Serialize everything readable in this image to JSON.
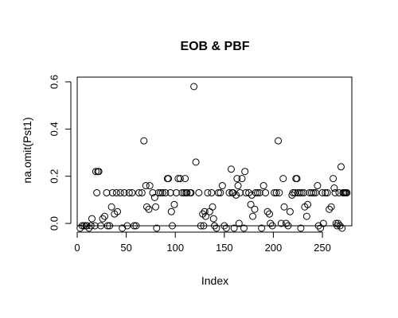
{
  "chart_data": {
    "type": "scatter",
    "title": "EOB & PBF",
    "xlabel": "Index",
    "ylabel": "na.omit(Pst1)",
    "xlim": [
      0,
      280
    ],
    "ylim": [
      -0.01,
      0.62
    ],
    "x_ticks": [
      0,
      50,
      100,
      150,
      200,
      250
    ],
    "y_ticks": [
      0.0,
      0.2,
      0.4,
      0.6
    ],
    "x_tick_labels": [
      "0",
      "50",
      "100",
      "150",
      "200",
      "250"
    ],
    "y_tick_labels": [
      "0.0",
      "0.2",
      "0.4",
      "0.6"
    ],
    "grid": false,
    "legend": "none",
    "marker": "open-circle",
    "colors": {
      "background": "#ffffff",
      "axis": "#000000",
      "marker_stroke": "#000000",
      "text": "#000000"
    },
    "points": [
      {
        "x": 3,
        "y": -0.02
      },
      {
        "x": 5,
        "y": -0.01
      },
      {
        "x": 7,
        "y": -0.01
      },
      {
        "x": 9,
        "y": -0.01
      },
      {
        "x": 10,
        "y": -0.01
      },
      {
        "x": 12,
        "y": -0.02
      },
      {
        "x": 14,
        "y": -0.01
      },
      {
        "x": 15,
        "y": 0.02
      },
      {
        "x": 18,
        "y": -0.01
      },
      {
        "x": 19,
        "y": 0.22
      },
      {
        "x": 20,
        "y": 0.13
      },
      {
        "x": 21,
        "y": 0.22
      },
      {
        "x": 22,
        "y": 0.22
      },
      {
        "x": 24,
        "y": -0.01
      },
      {
        "x": 26,
        "y": 0.02
      },
      {
        "x": 28,
        "y": 0.03
      },
      {
        "x": 30,
        "y": 0.13
      },
      {
        "x": 31,
        "y": -0.01
      },
      {
        "x": 33,
        "y": -0.01
      },
      {
        "x": 35,
        "y": 0.07
      },
      {
        "x": 36,
        "y": 0.13
      },
      {
        "x": 38,
        "y": 0.04
      },
      {
        "x": 40,
        "y": 0.13
      },
      {
        "x": 41,
        "y": 0.05
      },
      {
        "x": 44,
        "y": 0.13
      },
      {
        "x": 46,
        "y": -0.02
      },
      {
        "x": 48,
        "y": 0.13
      },
      {
        "x": 51,
        "y": -0.01
      },
      {
        "x": 53,
        "y": 0.13
      },
      {
        "x": 56,
        "y": 0.13
      },
      {
        "x": 58,
        "y": -0.01
      },
      {
        "x": 60,
        "y": -0.01
      },
      {
        "x": 63,
        "y": 0.13
      },
      {
        "x": 66,
        "y": 0.13
      },
      {
        "x": 68,
        "y": 0.35
      },
      {
        "x": 70,
        "y": 0.16
      },
      {
        "x": 71,
        "y": 0.07
      },
      {
        "x": 73,
        "y": 0.06
      },
      {
        "x": 74,
        "y": 0.16
      },
      {
        "x": 77,
        "y": 0.13
      },
      {
        "x": 79,
        "y": 0.11
      },
      {
        "x": 80,
        "y": 0.07
      },
      {
        "x": 81,
        "y": -0.02
      },
      {
        "x": 83,
        "y": 0.13
      },
      {
        "x": 85,
        "y": 0.13
      },
      {
        "x": 87,
        "y": 0.13
      },
      {
        "x": 90,
        "y": 0.13
      },
      {
        "x": 92,
        "y": 0.19
      },
      {
        "x": 93,
        "y": 0.19
      },
      {
        "x": 95,
        "y": 0.13
      },
      {
        "x": 96,
        "y": 0.05
      },
      {
        "x": 97,
        "y": -0.01
      },
      {
        "x": 99,
        "y": 0.08
      },
      {
        "x": 101,
        "y": 0.13
      },
      {
        "x": 103,
        "y": 0.19
      },
      {
        "x": 105,
        "y": 0.19
      },
      {
        "x": 107,
        "y": 0.13
      },
      {
        "x": 109,
        "y": 0.13
      },
      {
        "x": 110,
        "y": 0.19
      },
      {
        "x": 111,
        "y": 0.13
      },
      {
        "x": 112,
        "y": 0.13
      },
      {
        "x": 115,
        "y": 0.13
      },
      {
        "x": 116,
        "y": 0.13
      },
      {
        "x": 119,
        "y": 0.58
      },
      {
        "x": 121,
        "y": 0.26
      },
      {
        "x": 124,
        "y": 0.13
      },
      {
        "x": 126,
        "y": -0.01
      },
      {
        "x": 128,
        "y": 0.04
      },
      {
        "x": 129,
        "y": -0.01
      },
      {
        "x": 130,
        "y": 0.05
      },
      {
        "x": 131,
        "y": 0.03
      },
      {
        "x": 133,
        "y": 0.13
      },
      {
        "x": 135,
        "y": 0.05
      },
      {
        "x": 137,
        "y": 0.13
      },
      {
        "x": 138,
        "y": 0.07
      },
      {
        "x": 139,
        "y": 0.02
      },
      {
        "x": 140,
        "y": -0.01
      },
      {
        "x": 142,
        "y": -0.02
      },
      {
        "x": 144,
        "y": 0.13
      },
      {
        "x": 146,
        "y": 0.13
      },
      {
        "x": 148,
        "y": 0.16
      },
      {
        "x": 150,
        "y": -0.01
      },
      {
        "x": 152,
        "y": -0.02
      },
      {
        "x": 155,
        "y": 0.13
      },
      {
        "x": 157,
        "y": 0.23
      },
      {
        "x": 158,
        "y": 0.13
      },
      {
        "x": 159,
        "y": 0.13
      },
      {
        "x": 160,
        "y": -0.02
      },
      {
        "x": 162,
        "y": 0.12
      },
      {
        "x": 163,
        "y": 0.19
      },
      {
        "x": 164,
        "y": 0.16
      },
      {
        "x": 165,
        "y": 0.0
      },
      {
        "x": 166,
        "y": 0.13
      },
      {
        "x": 168,
        "y": 0.19
      },
      {
        "x": 170,
        "y": -0.02
      },
      {
        "x": 171,
        "y": 0.22
      },
      {
        "x": 172,
        "y": 0.13
      },
      {
        "x": 175,
        "y": 0.13
      },
      {
        "x": 177,
        "y": 0.08
      },
      {
        "x": 178,
        "y": 0.12
      },
      {
        "x": 179,
        "y": 0.03
      },
      {
        "x": 181,
        "y": 0.06
      },
      {
        "x": 182,
        "y": 0.13
      },
      {
        "x": 184,
        "y": 0.13
      },
      {
        "x": 186,
        "y": 0.13
      },
      {
        "x": 188,
        "y": -0.02
      },
      {
        "x": 190,
        "y": 0.16
      },
      {
        "x": 192,
        "y": 0.13
      },
      {
        "x": 194,
        "y": 0.05
      },
      {
        "x": 196,
        "y": 0.04
      },
      {
        "x": 197,
        "y": 0.0
      },
      {
        "x": 199,
        "y": -0.01
      },
      {
        "x": 201,
        "y": 0.13
      },
      {
        "x": 203,
        "y": 0.13
      },
      {
        "x": 205,
        "y": 0.35
      },
      {
        "x": 206,
        "y": 0.13
      },
      {
        "x": 208,
        "y": 0.0
      },
      {
        "x": 210,
        "y": 0.19
      },
      {
        "x": 211,
        "y": 0.07
      },
      {
        "x": 213,
        "y": 0.0
      },
      {
        "x": 215,
        "y": -0.01
      },
      {
        "x": 217,
        "y": 0.05
      },
      {
        "x": 219,
        "y": 0.12
      },
      {
        "x": 220,
        "y": 0.13
      },
      {
        "x": 222,
        "y": 0.13
      },
      {
        "x": 223,
        "y": 0.19
      },
      {
        "x": 224,
        "y": 0.19
      },
      {
        "x": 225,
        "y": 0.13
      },
      {
        "x": 227,
        "y": 0.13
      },
      {
        "x": 228,
        "y": -0.02
      },
      {
        "x": 229,
        "y": 0.13
      },
      {
        "x": 231,
        "y": 0.13
      },
      {
        "x": 232,
        "y": 0.07
      },
      {
        "x": 234,
        "y": 0.03
      },
      {
        "x": 235,
        "y": 0.08
      },
      {
        "x": 237,
        "y": 0.13
      },
      {
        "x": 239,
        "y": 0.13
      },
      {
        "x": 241,
        "y": 0.13
      },
      {
        "x": 243,
        "y": 0.13
      },
      {
        "x": 245,
        "y": 0.16
      },
      {
        "x": 246,
        "y": -0.01
      },
      {
        "x": 248,
        "y": -0.02
      },
      {
        "x": 250,
        "y": 0.13
      },
      {
        "x": 251,
        "y": 0.0
      },
      {
        "x": 253,
        "y": 0.13
      },
      {
        "x": 255,
        "y": 0.13
      },
      {
        "x": 257,
        "y": 0.06
      },
      {
        "x": 259,
        "y": 0.07
      },
      {
        "x": 261,
        "y": 0.19
      },
      {
        "x": 262,
        "y": 0.15
      },
      {
        "x": 263,
        "y": 0.13
      },
      {
        "x": 264,
        "y": 0.0
      },
      {
        "x": 265,
        "y": -0.01
      },
      {
        "x": 266,
        "y": 0.0
      },
      {
        "x": 267,
        "y": 0.13
      },
      {
        "x": 268,
        "y": -0.01
      },
      {
        "x": 269,
        "y": 0.24
      },
      {
        "x": 270,
        "y": -0.02
      },
      {
        "x": 271,
        "y": 0.13
      },
      {
        "x": 272,
        "y": 0.13
      },
      {
        "x": 273,
        "y": 0.13
      },
      {
        "x": 274,
        "y": 0.13
      },
      {
        "x": 275,
        "y": 0.13
      }
    ]
  }
}
